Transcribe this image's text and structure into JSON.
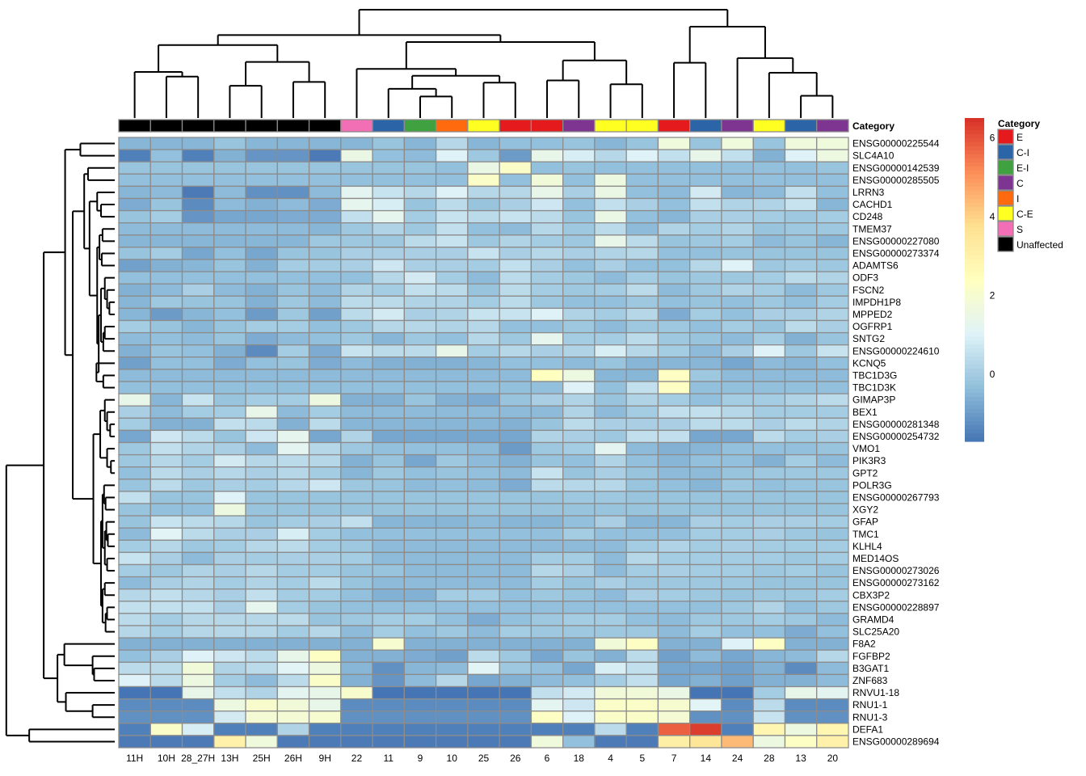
{
  "chart_data": {
    "type": "heatmap",
    "title": "",
    "annotation_label": "Category",
    "columns": [
      "11H",
      "10H",
      "28_27H",
      "13H",
      "25H",
      "26H",
      "9H",
      "22",
      "11",
      "9",
      "10",
      "25",
      "26",
      "6",
      "18",
      "4",
      "5",
      "7",
      "14",
      "24",
      "28",
      "13",
      "20"
    ],
    "column_categories": [
      "Unaffected",
      "Unaffected",
      "Unaffected",
      "Unaffected",
      "Unaffected",
      "Unaffected",
      "Unaffected",
      "S",
      "C-I",
      "E-I",
      "I",
      "C-E",
      "E",
      "E",
      "C",
      "C-E",
      "C-E",
      "E",
      "C-I",
      "C",
      "C-E",
      "C-I",
      "C"
    ],
    "rows": [
      "ENSG00000225544",
      "SLC4A10",
      "ENSG00000142539",
      "ENSG00000285505",
      "LRRN3",
      "CACHD1",
      "CD248",
      "TMEM37",
      "ENSG00000227080",
      "ENSG00000273374",
      "ADAMTS6",
      "ODF3",
      "FSCN2",
      "IMPDH1P8",
      "MPPED2",
      "OGFRP1",
      "SNTG2",
      "ENSG00000224610",
      "KCNQ5",
      "TBC1D3G",
      "TBC1D3K",
      "GIMAP3P",
      "BEX1",
      "ENSG00000281348",
      "ENSG00000254732",
      "VMO1",
      "PIK3R3",
      "GPT2",
      "POLR3G",
      "ENSG00000267793",
      "XGY2",
      "GFAP",
      "TMC1",
      "KLHL4",
      "MED14OS",
      "ENSG00000273026",
      "ENSG00000273162",
      "CBX3P2",
      "ENSG00000228897",
      "GRAMD4",
      "SLC25A20",
      "F8A2",
      "FGFBP2",
      "B3GAT1",
      "ZNF683",
      "RNVU1-18",
      "RNU1-1",
      "RNU1-3",
      "DEFA1",
      "ENSG00000289694"
    ],
    "values": [
      [
        -0.5,
        -0.5,
        -0.5,
        -0.2,
        -0.5,
        -0.5,
        -0.5,
        -0.5,
        -0.2,
        -0.5,
        0.3,
        -0.5,
        -0.3,
        -0.3,
        -0.2,
        -0.5,
        -0.2,
        1.7,
        -0.2,
        1.7,
        -0.2,
        1.7,
        1.7
      ],
      [
        -1.5,
        -0.3,
        -1.5,
        -0.6,
        -1.1,
        -1.1,
        -1.6,
        1.5,
        -0.3,
        -0.4,
        1.0,
        -0.1,
        -1.0,
        1.4,
        0.9,
        0.3,
        1.0,
        0.5,
        1.4,
        0.5,
        -0.6,
        1.0,
        1.6
      ],
      [
        -0.2,
        -0.2,
        -0.2,
        -0.2,
        -0.2,
        -0.2,
        -0.2,
        -0.2,
        -0.2,
        -0.2,
        -0.3,
        1.5,
        2.2,
        -0.3,
        -0.2,
        -0.3,
        -0.3,
        -0.3,
        -0.3,
        -0.3,
        -0.3,
        -0.3,
        -0.2
      ],
      [
        -0.3,
        -0.3,
        -0.3,
        -0.3,
        -0.3,
        -0.3,
        -0.3,
        -0.3,
        -0.3,
        -0.3,
        -0.3,
        2.2,
        -0.3,
        1.8,
        -0.3,
        1.6,
        -0.3,
        -0.3,
        -0.3,
        -0.3,
        -0.3,
        -0.3,
        -0.3
      ],
      [
        -0.5,
        -0.4,
        -1.6,
        -0.4,
        -1.2,
        -1.2,
        -0.4,
        1.2,
        0.6,
        0.3,
        1.0,
        0.3,
        0.3,
        1.4,
        0.1,
        1.5,
        -0.3,
        -0.4,
        0.8,
        -0.5,
        -0.4,
        0.5,
        -0.3
      ],
      [
        -0.7,
        -0.2,
        -1.3,
        -0.4,
        -0.6,
        -0.4,
        -0.7,
        1.3,
        0.9,
        -0.2,
        0.4,
        -0.2,
        0.1,
        0.7,
        -0.3,
        0.5,
        0.1,
        -0.3,
        0.5,
        0.2,
        0.2,
        0.6,
        -0.5
      ],
      [
        -0.2,
        0.0,
        -1.1,
        -0.8,
        -0.8,
        -0.7,
        -0.7,
        0.5,
        1.3,
        0.0,
        0.6,
        0.4,
        0.6,
        0.4,
        -0.2,
        1.5,
        -0.3,
        -0.5,
        0.1,
        0.1,
        0.0,
        -0.1,
        0.0
      ],
      [
        -0.4,
        -0.4,
        -0.4,
        -0.4,
        -0.4,
        -0.4,
        -0.5,
        -0.1,
        0.2,
        -0.1,
        0.5,
        -0.3,
        -0.4,
        0.3,
        -0.1,
        0.4,
        -0.4,
        0.2,
        0.0,
        0.2,
        -0.2,
        -0.1,
        -0.1
      ],
      [
        -0.5,
        -0.5,
        -0.5,
        -0.5,
        -0.5,
        -0.5,
        -0.1,
        -0.1,
        -0.1,
        0.4,
        0.6,
        -0.1,
        0.2,
        0.0,
        -0.1,
        1.4,
        0.4,
        -0.2,
        -0.1,
        0.0,
        -0.4,
        -0.2,
        -0.5
      ],
      [
        -0.2,
        0.0,
        -0.8,
        -0.3,
        -0.8,
        -0.2,
        -0.2,
        0.1,
        0.1,
        0.1,
        0.1,
        0.6,
        0.1,
        0.3,
        0.1,
        0.2,
        0.3,
        -0.3,
        -0.3,
        -0.2,
        -0.2,
        -0.2,
        -0.2
      ],
      [
        -0.9,
        -0.6,
        -0.5,
        -0.2,
        -0.6,
        0.0,
        0.0,
        0.1,
        0.7,
        0.1,
        0.1,
        0.0,
        0.5,
        0.1,
        -0.3,
        0.1,
        -0.3,
        -0.3,
        0.3,
        1.0,
        -0.1,
        0.0,
        -0.1
      ],
      [
        -0.3,
        -0.3,
        -0.3,
        -0.3,
        -0.3,
        -0.3,
        -0.3,
        -0.3,
        0.3,
        0.8,
        0.0,
        -0.4,
        0.4,
        0.0,
        -0.1,
        -0.4,
        0.0,
        -0.2,
        -0.1,
        -0.1,
        0.0,
        0.4,
        0.2
      ],
      [
        -0.6,
        -0.4,
        0.1,
        -0.4,
        -0.6,
        -0.2,
        -0.4,
        0.2,
        0.0,
        0.5,
        0.4,
        -0.2,
        0.4,
        0.0,
        -0.1,
        0.0,
        0.4,
        -0.4,
        -0.1,
        0.2,
        0.0,
        -0.4,
        -0.1
      ],
      [
        -0.5,
        -0.1,
        -0.2,
        -0.2,
        -0.6,
        -0.1,
        -0.4,
        0.4,
        0.4,
        0.2,
        0.2,
        0.0,
        0.4,
        -0.1,
        -0.3,
        -0.3,
        -0.1,
        -0.3,
        -0.2,
        -0.3,
        -0.1,
        -0.3,
        0.0
      ],
      [
        -0.5,
        -1.0,
        -0.5,
        -0.3,
        -1.0,
        -0.1,
        -0.9,
        0.4,
        0.8,
        0.1,
        0.2,
        0.6,
        0.6,
        1.0,
        0.2,
        0.0,
        0.3,
        -0.7,
        0.0,
        -0.3,
        0.1,
        0.1,
        0.2
      ],
      [
        0.0,
        -0.2,
        -0.5,
        -0.2,
        0.0,
        0.0,
        -0.3,
        -0.1,
        0.3,
        0.3,
        0.2,
        0.3,
        -0.3,
        -0.3,
        -0.1,
        -0.4,
        -0.1,
        -0.1,
        -0.3,
        0.0,
        -0.2,
        0.4,
        0.1
      ],
      [
        -0.4,
        -0.3,
        -0.4,
        -0.2,
        -0.7,
        -0.4,
        -0.3,
        -0.1,
        -0.5,
        -0.1,
        -0.3,
        0.3,
        -0.1,
        1.3,
        0.0,
        0.0,
        0.4,
        -0.1,
        -0.2,
        -0.4,
        0.0,
        -0.6,
        -0.2
      ],
      [
        -0.6,
        -0.2,
        -0.3,
        -0.6,
        -1.3,
        0.0,
        -0.7,
        0.6,
        0.4,
        0.4,
        1.4,
        0.0,
        0.3,
        0.1,
        0.2,
        0.9,
        0.3,
        0.0,
        -0.4,
        0.1,
        1.0,
        -0.1,
        0.6
      ],
      [
        -0.9,
        -0.3,
        -0.3,
        -0.7,
        -0.3,
        -0.2,
        -0.7,
        -0.4,
        -0.6,
        -0.6,
        -0.6,
        -0.5,
        -0.3,
        -0.3,
        -0.4,
        -0.2,
        -0.5,
        -0.5,
        -0.5,
        -0.8,
        -0.4,
        -0.5,
        -0.3
      ],
      [
        -0.4,
        -0.4,
        -0.4,
        -0.4,
        -0.4,
        -0.4,
        -0.4,
        -0.4,
        -0.4,
        -0.4,
        -0.4,
        -0.4,
        -0.4,
        2.4,
        1.6,
        -0.5,
        -0.5,
        2.3,
        -0.1,
        -0.4,
        -0.4,
        -0.4,
        -0.4
      ],
      [
        -0.3,
        -0.3,
        -0.3,
        -0.3,
        -0.3,
        -0.3,
        -0.3,
        -0.3,
        -0.3,
        -0.3,
        -0.3,
        -0.3,
        -0.3,
        -0.3,
        1.0,
        -0.3,
        0.5,
        2.3,
        -0.3,
        -0.3,
        -0.3,
        -0.3,
        -0.3
      ],
      [
        1.4,
        -0.5,
        0.6,
        -0.2,
        0.0,
        0.0,
        1.6,
        -0.6,
        -0.6,
        -0.2,
        -0.6,
        -0.7,
        -0.2,
        0.1,
        0.2,
        -0.2,
        0.2,
        0.0,
        -0.3,
        0.0,
        0.0,
        0.2,
        0.4
      ],
      [
        0.1,
        -0.4,
        0.0,
        0.0,
        1.4,
        -0.4,
        0.0,
        -0.4,
        -0.4,
        -0.4,
        -0.4,
        -0.4,
        -0.4,
        -0.4,
        0.2,
        -0.4,
        0.0,
        0.5,
        0.5,
        0.3,
        0.0,
        0.0,
        0.0
      ],
      [
        0.0,
        -0.6,
        -0.6,
        0.5,
        0.4,
        -0.6,
        0.4,
        -0.5,
        -0.5,
        -0.5,
        -0.5,
        -0.5,
        -0.6,
        -0.2,
        0.4,
        0.1,
        0.1,
        0.1,
        0.4,
        0.4,
        0.1,
        0.4,
        0.2
      ],
      [
        -0.8,
        0.7,
        0.4,
        -0.2,
        0.7,
        1.3,
        -0.8,
        0.2,
        -0.8,
        -0.8,
        -0.8,
        -0.8,
        -0.8,
        0.2,
        0.1,
        -0.1,
        0.5,
        0.5,
        -0.8,
        -0.8,
        0.4,
        0.0,
        0.1
      ],
      [
        -0.1,
        0.5,
        0.2,
        0.1,
        -0.4,
        1.2,
        0.3,
        -0.1,
        -0.3,
        -0.3,
        -0.3,
        -0.4,
        -1.0,
        -0.1,
        0.0,
        1.2,
        -0.4,
        -0.6,
        -0.5,
        -0.3,
        -0.3,
        -0.3,
        -0.2
      ],
      [
        -0.1,
        0.3,
        0.0,
        0.8,
        0.3,
        0.4,
        0.3,
        -0.6,
        -0.2,
        -0.8,
        -0.1,
        -0.4,
        -0.6,
        -0.2,
        -0.3,
        0.2,
        -0.3,
        -0.5,
        -0.3,
        -0.3,
        -0.6,
        0.0,
        -0.4
      ],
      [
        -0.3,
        0.4,
        0.1,
        0.3,
        0.1,
        0.3,
        0.0,
        -0.5,
        -0.1,
        -0.3,
        -0.2,
        -0.3,
        -0.4,
        0.6,
        -0.2,
        0.1,
        -0.2,
        -0.4,
        -0.4,
        -0.2,
        -0.1,
        -0.1,
        -0.1
      ],
      [
        -0.2,
        0.4,
        -0.1,
        0.1,
        0.0,
        0.3,
        0.7,
        -0.1,
        -0.2,
        -0.4,
        -0.3,
        -0.4,
        -0.7,
        0.4,
        0.3,
        0.3,
        -0.2,
        -0.3,
        -0.5,
        -0.1,
        -0.3,
        -0.2,
        -0.2
      ],
      [
        0.5,
        -0.2,
        -0.2,
        1.0,
        -0.2,
        -0.2,
        -0.2,
        -0.2,
        -0.2,
        -0.2,
        -0.2,
        -0.2,
        -0.2,
        -0.2,
        -0.1,
        -0.1,
        -0.2,
        -0.2,
        -0.2,
        -0.2,
        -0.2,
        -0.2,
        -0.2
      ],
      [
        -0.2,
        -0.3,
        -0.3,
        1.6,
        -0.2,
        -0.2,
        -0.2,
        -0.2,
        -0.2,
        -0.2,
        -0.2,
        -0.2,
        -0.2,
        -0.2,
        -0.2,
        -0.2,
        -0.2,
        -0.2,
        -0.2,
        -0.2,
        -0.2,
        -0.2,
        -0.2
      ],
      [
        -0.2,
        0.6,
        0.4,
        0.3,
        -0.2,
        0.0,
        0.1,
        0.5,
        -0.5,
        -0.5,
        -0.5,
        -0.4,
        -0.5,
        -0.5,
        -0.3,
        0.1,
        -0.5,
        -0.5,
        0.1,
        0.0,
        0.1,
        0.1,
        0.0
      ],
      [
        -0.4,
        1.1,
        0.4,
        0.1,
        0.1,
        0.9,
        0.0,
        -0.3,
        -0.3,
        -0.3,
        -0.3,
        -0.3,
        -0.3,
        -0.3,
        0.0,
        -0.3,
        -0.3,
        -0.3,
        0.0,
        0.0,
        0.1,
        -0.1,
        -0.2
      ],
      [
        0.0,
        0.3,
        -0.1,
        0.0,
        0.3,
        0.4,
        0.0,
        -0.1,
        -0.4,
        -0.4,
        -0.4,
        -0.4,
        -0.4,
        -0.4,
        -0.4,
        -0.4,
        0.0,
        0.2,
        0.0,
        0.1,
        0.0,
        0.0,
        0.0
      ],
      [
        0.6,
        0.1,
        -0.4,
        0.1,
        0.0,
        0.1,
        0.1,
        0.0,
        -0.4,
        -0.4,
        -0.4,
        -0.4,
        -0.4,
        0.0,
        0.0,
        -0.4,
        0.3,
        0.0,
        0.0,
        0.0,
        0.0,
        -0.1,
        0.0
      ],
      [
        0.0,
        -0.1,
        0.2,
        0.1,
        0.3,
        0.0,
        0.0,
        -0.2,
        -0.2,
        -0.4,
        -0.4,
        -0.4,
        -0.4,
        0.3,
        0.1,
        -0.4,
        0.0,
        0.1,
        0.0,
        0.0,
        -0.1,
        0.0,
        -0.2
      ],
      [
        -0.4,
        0.1,
        0.2,
        0.0,
        0.2,
        0.0,
        0.4,
        -0.2,
        -0.4,
        -0.4,
        -0.4,
        -0.4,
        -0.4,
        0.0,
        -0.2,
        0.1,
        -0.1,
        -0.1,
        -0.1,
        -0.1,
        -0.2,
        -0.2,
        -0.2
      ],
      [
        0.3,
        0.5,
        0.3,
        0.1,
        0.5,
        0.0,
        0.0,
        -0.3,
        -0.6,
        -0.6,
        0.0,
        0.0,
        -0.3,
        -0.1,
        -0.2,
        -0.4,
        0.1,
        0.0,
        -0.1,
        -0.2,
        -0.1,
        -0.1,
        0.0
      ],
      [
        0.5,
        0.5,
        0.5,
        0.1,
        1.3,
        0.0,
        -0.2,
        -0.3,
        -0.3,
        -0.3,
        -0.3,
        -0.3,
        -0.3,
        -0.3,
        -0.3,
        -0.3,
        -0.3,
        -0.3,
        -0.3,
        -0.1,
        0.2,
        -0.3,
        -0.1
      ],
      [
        0.4,
        0.0,
        0.3,
        0.3,
        0.3,
        0.4,
        -0.2,
        -0.1,
        0.0,
        0.0,
        -0.3,
        -0.7,
        -0.3,
        -0.1,
        0.0,
        0.0,
        -0.3,
        -0.4,
        -0.1,
        -0.1,
        0.0,
        -0.1,
        -0.4
      ],
      [
        0.3,
        0.0,
        0.3,
        0.3,
        0.3,
        0.0,
        0.3,
        -0.4,
        0.0,
        -0.3,
        -0.1,
        -0.4,
        0.0,
        -0.1,
        -0.1,
        -0.1,
        -0.1,
        -0.4,
        0.0,
        -0.3,
        -0.3,
        -0.7,
        -0.3
      ],
      [
        -0.6,
        -0.6,
        -0.6,
        -0.6,
        -0.6,
        -0.6,
        -0.6,
        -0.6,
        2.0,
        -0.6,
        -0.6,
        -0.6,
        -0.6,
        -0.6,
        -0.6,
        1.8,
        2.3,
        -0.6,
        -0.6,
        1.0,
        2.3,
        -0.6,
        -0.6
      ],
      [
        -0.3,
        0.1,
        1.0,
        0.7,
        0.4,
        1.4,
        2.3,
        -0.6,
        -0.6,
        -0.7,
        -0.9,
        0.4,
        -0.1,
        -0.8,
        -0.2,
        -0.6,
        0.4,
        -0.9,
        -0.4,
        -0.8,
        -0.5,
        -0.4,
        0.3
      ],
      [
        0.4,
        0.4,
        1.8,
        0.2,
        0.4,
        1.1,
        1.6,
        -0.5,
        -1.2,
        -0.5,
        -0.4,
        1.1,
        -0.1,
        -0.3,
        -0.8,
        0.9,
        0.5,
        -0.8,
        -0.8,
        -0.9,
        -0.6,
        -1.3,
        -0.4
      ],
      [
        1.0,
        0.4,
        1.6,
        0.0,
        -0.4,
        0.4,
        2.2,
        -0.6,
        -1.1,
        -0.4,
        0.3,
        -0.8,
        -0.6,
        -0.4,
        -0.3,
        0.0,
        0.5,
        -0.8,
        -0.6,
        -0.9,
        -0.6,
        -0.6,
        -0.4
      ],
      [
        -1.7,
        -1.7,
        1.4,
        0.5,
        0.2,
        1.2,
        1.4,
        2.1,
        -1.7,
        -1.7,
        -1.7,
        -1.7,
        -1.7,
        0.5,
        0.8,
        1.8,
        1.8,
        1.5,
        -1.7,
        -1.7,
        0.0,
        1.4,
        1.2
      ],
      [
        -1.3,
        -1.3,
        -1.3,
        1.6,
        2.1,
        1.8,
        1.4,
        -1.3,
        -1.3,
        -1.3,
        -1.3,
        -1.3,
        -1.3,
        1.2,
        0.7,
        2.2,
        2.2,
        2.0,
        1.1,
        -1.3,
        0.4,
        -1.3,
        -1.3
      ],
      [
        -1.2,
        -1.2,
        -1.2,
        0.8,
        1.9,
        1.9,
        2.0,
        -1.2,
        -1.2,
        -1.2,
        -1.2,
        -1.2,
        -1.2,
        2.3,
        1.0,
        2.2,
        2.2,
        1.9,
        -1.2,
        -1.2,
        0.6,
        -1.2,
        -1.2
      ],
      [
        -1.5,
        2.2,
        0.9,
        -1.5,
        -1.5,
        0.2,
        -1.5,
        -1.5,
        -1.5,
        -1.5,
        -1.5,
        -1.5,
        -1.5,
        -1.5,
        -1.5,
        0.4,
        -1.5,
        5.8,
        6.3,
        -1.5,
        2.8,
        1.6,
        2.8
      ],
      [
        -1.6,
        -1.6,
        -1.6,
        3.0,
        1.7,
        -1.6,
        -1.6,
        -1.6,
        -1.6,
        -1.6,
        -1.6,
        -1.6,
        -1.6,
        1.7,
        -0.3,
        -1.6,
        -1.6,
        3.1,
        3.5,
        4.4,
        1.6,
        2.3,
        3.0
      ]
    ],
    "value_range": [
      -1.7,
      6.5
    ],
    "colorbar_ticks": [
      0,
      2,
      4,
      6
    ],
    "colormap": [
      "#4575B4",
      "#91BFDB",
      "#E0F3F8",
      "#FFFFBF",
      "#FEE090",
      "#FC8D59",
      "#D73027"
    ],
    "category_colors": {
      "E": "#E41A1C",
      "C-I": "#2B65A8",
      "E-I": "#3FA13F",
      "C": "#7E3592",
      "I": "#FF6A0F",
      "C-E": "#FFFF22",
      "S": "#F26EB5",
      "Unaffected": "#000000"
    },
    "legend": {
      "title": "Category",
      "items": [
        "E",
        "C-I",
        "E-I",
        "C",
        "I",
        "C-E",
        "S",
        "Unaffected"
      ],
      "placement": "right"
    },
    "row_dendrogram": "clustered",
    "column_dendrogram": "clustered",
    "grid": true
  }
}
